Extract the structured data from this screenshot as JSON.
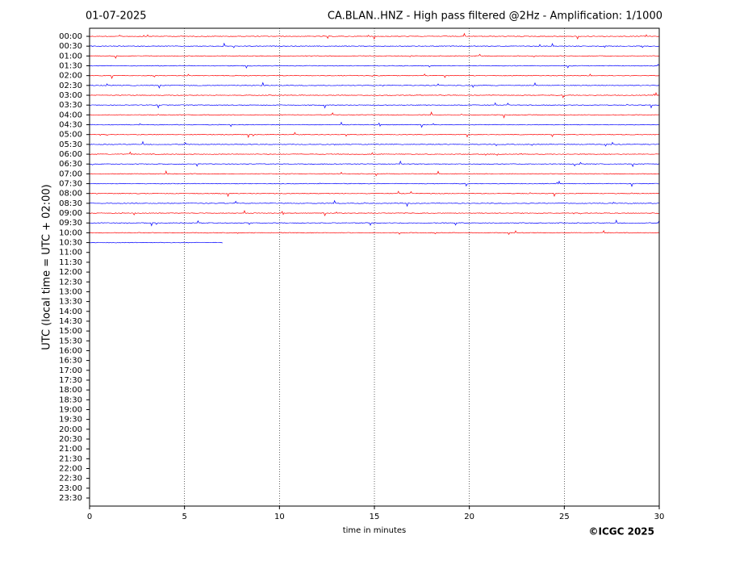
{
  "chart_data": {
    "type": "helicorder",
    "date": "01-07-2025",
    "title": "CA.BLAN..HNZ - High pass filtered @2Hz - Amplification: 1/1000",
    "ylabel": "UTC (local time = UTC + 02:00)",
    "xlabel": "time in minutes",
    "copyright": "©ICGC 2025",
    "xlim": [
      0,
      30
    ],
    "xticks": [
      0,
      5,
      10,
      15,
      20,
      25,
      30
    ],
    "grid": true,
    "colors": [
      "#ff0000",
      "#0000ff"
    ],
    "categories": [
      "00:00",
      "00:30",
      "01:00",
      "01:30",
      "02:00",
      "02:30",
      "03:00",
      "03:30",
      "04:00",
      "04:30",
      "05:00",
      "05:30",
      "06:00",
      "06:30",
      "07:00",
      "07:30",
      "08:00",
      "08:30",
      "09:00",
      "09:30",
      "10:00",
      "10:30",
      "11:00",
      "11:30",
      "12:00",
      "12:30",
      "13:00",
      "13:30",
      "14:00",
      "14:30",
      "15:00",
      "15:30",
      "16:00",
      "16:30",
      "17:00",
      "17:30",
      "18:00",
      "18:30",
      "19:00",
      "19:30",
      "20:00",
      "20:30",
      "21:00",
      "21:30",
      "22:00",
      "22:30",
      "23:00",
      "23:30"
    ],
    "values": [
      30,
      30,
      30,
      30,
      30,
      30,
      30,
      30,
      30,
      30,
      30,
      30,
      30,
      30,
      30,
      30,
      30,
      30,
      30,
      30,
      30,
      7,
      null,
      null,
      null,
      null,
      null,
      null,
      null,
      null,
      null,
      null,
      null,
      null,
      null,
      null,
      null,
      null,
      null,
      null,
      null,
      null,
      null,
      null,
      null,
      null,
      null,
      null
    ]
  }
}
